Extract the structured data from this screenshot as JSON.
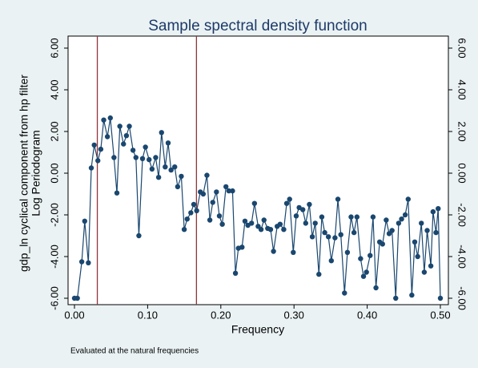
{
  "chart_data": {
    "type": "line",
    "title": "Sample spectral density function",
    "xlabel": "Frequency",
    "ylabel": [
      "gdp_ln cyclical component from hp filter",
      "Log Periodogram"
    ],
    "note": "Evaluated at the natural frequencies",
    "xlim": [
      0,
      0.5
    ],
    "ylim": [
      -6,
      6
    ],
    "xticks": [
      {
        "value": 0,
        "label": "0.00"
      },
      {
        "value": 0.1,
        "label": "0.10"
      },
      {
        "value": 0.2,
        "label": "0.20"
      },
      {
        "value": 0.3,
        "label": "0.30"
      },
      {
        "value": 0.4,
        "label": "0.40"
      },
      {
        "value": 0.5,
        "label": "0.50"
      }
    ],
    "yticks": [
      {
        "value": -6,
        "label": "-6.00"
      },
      {
        "value": -4,
        "label": "-4.00"
      },
      {
        "value": -2,
        "label": "-2.00"
      },
      {
        "value": 0,
        "label": "0.00"
      },
      {
        "value": 2,
        "label": "2.00"
      },
      {
        "value": 4,
        "label": "4.00"
      },
      {
        "value": 6,
        "label": "6.00"
      }
    ],
    "xlines": [
      0.03125,
      0.1667
    ],
    "xline_color": "#90353b",
    "series": [
      {
        "color": "#1a476f",
        "x": [
          0,
          0.004,
          0.01,
          0.014,
          0.019,
          0.023,
          0.027,
          0.032,
          0.036,
          0.04,
          0.045,
          0.049,
          0.054,
          0.058,
          0.062,
          0.067,
          0.071,
          0.075,
          0.08,
          0.084,
          0.088,
          0.093,
          0.097,
          0.102,
          0.106,
          0.111,
          0.115,
          0.119,
          0.124,
          0.128,
          0.132,
          0.137,
          0.141,
          0.146,
          0.15,
          0.154,
          0.159,
          0.163,
          0.167,
          0.172,
          0.176,
          0.181,
          0.185,
          0.189,
          0.194,
          0.198,
          0.202,
          0.207,
          0.211,
          0.216,
          0.22,
          0.224,
          0.229,
          0.233,
          0.237,
          0.242,
          0.246,
          0.251,
          0.255,
          0.259,
          0.264,
          0.268,
          0.272,
          0.277,
          0.281,
          0.286,
          0.29,
          0.294,
          0.299,
          0.303,
          0.307,
          0.312,
          0.316,
          0.321,
          0.325,
          0.329,
          0.334,
          0.338,
          0.342,
          0.347,
          0.351,
          0.356,
          0.36,
          0.364,
          0.369,
          0.373,
          0.378,
          0.382,
          0.386,
          0.391,
          0.395,
          0.399,
          0.404,
          0.408,
          0.412,
          0.417,
          0.421,
          0.426,
          0.43,
          0.434,
          0.439,
          0.443,
          0.447,
          0.452,
          0.456,
          0.461,
          0.465,
          0.469,
          0.474,
          0.478,
          0.482,
          0.487,
          0.49,
          0.494,
          0.497,
          0.5
        ],
        "values": [
          -6.0,
          -6.0,
          -4.25,
          -2.3,
          -4.3,
          0.25,
          1.35,
          0.6,
          1.15,
          2.55,
          1.75,
          2.65,
          0.75,
          -0.95,
          2.25,
          1.4,
          1.8,
          2.25,
          1.1,
          0.75,
          -3.0,
          0.7,
          1.25,
          0.65,
          0.2,
          0.75,
          -0.2,
          1.95,
          0.3,
          1.45,
          0.15,
          0.3,
          -0.65,
          -0.15,
          -2.7,
          -2.2,
          -1.9,
          -1.5,
          -1.8,
          -0.9,
          -1.0,
          -0.1,
          -2.25,
          -1.4,
          -0.9,
          -2.05,
          -2.45,
          -0.65,
          -0.85,
          -0.85,
          -4.8,
          -3.6,
          -3.55,
          -2.3,
          -2.5,
          -2.4,
          -1.45,
          -2.55,
          -2.7,
          -2.25,
          -2.65,
          -2.7,
          -3.75,
          -2.55,
          -2.45,
          -2.7,
          -1.45,
          -1.25,
          -3.8,
          -2.05,
          -1.65,
          -1.75,
          -2.4,
          -1.5,
          -3.05,
          -2.4,
          -4.85,
          -2.1,
          -2.85,
          -3.05,
          -4.2,
          -3.1,
          -1.25,
          -2.95,
          -5.75,
          -3.8,
          -2.1,
          -2.85,
          -2.1,
          -4.1,
          -4.95,
          -4.75,
          -3.95,
          -2.1,
          -5.5,
          -3.3,
          -3.4,
          -2.25,
          -2.9,
          -2.75,
          -6.0,
          -2.4,
          -2.2,
          -2.0,
          -1.25,
          -5.85,
          -3.3,
          -4.0,
          -2.4,
          -4.75,
          -2.75,
          -4.45,
          -1.85,
          -2.85,
          -1.7,
          -6.0
        ]
      }
    ]
  }
}
